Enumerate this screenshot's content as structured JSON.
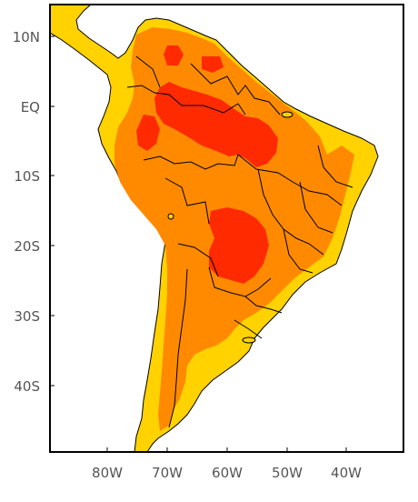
{
  "map": {
    "lat_labels": [
      "10N",
      "EQ",
      "10S",
      "20S",
      "30S",
      "40S"
    ],
    "lon_labels": [
      "80W",
      "70W",
      "60W",
      "50W",
      "40W"
    ],
    "colors": {
      "ocean": "#ffffff",
      "level_low": "#ffd200",
      "level_mid": "#ff8a00",
      "level_high": "#ff2a00",
      "border": "#000000",
      "frame": "#000000"
    }
  }
}
